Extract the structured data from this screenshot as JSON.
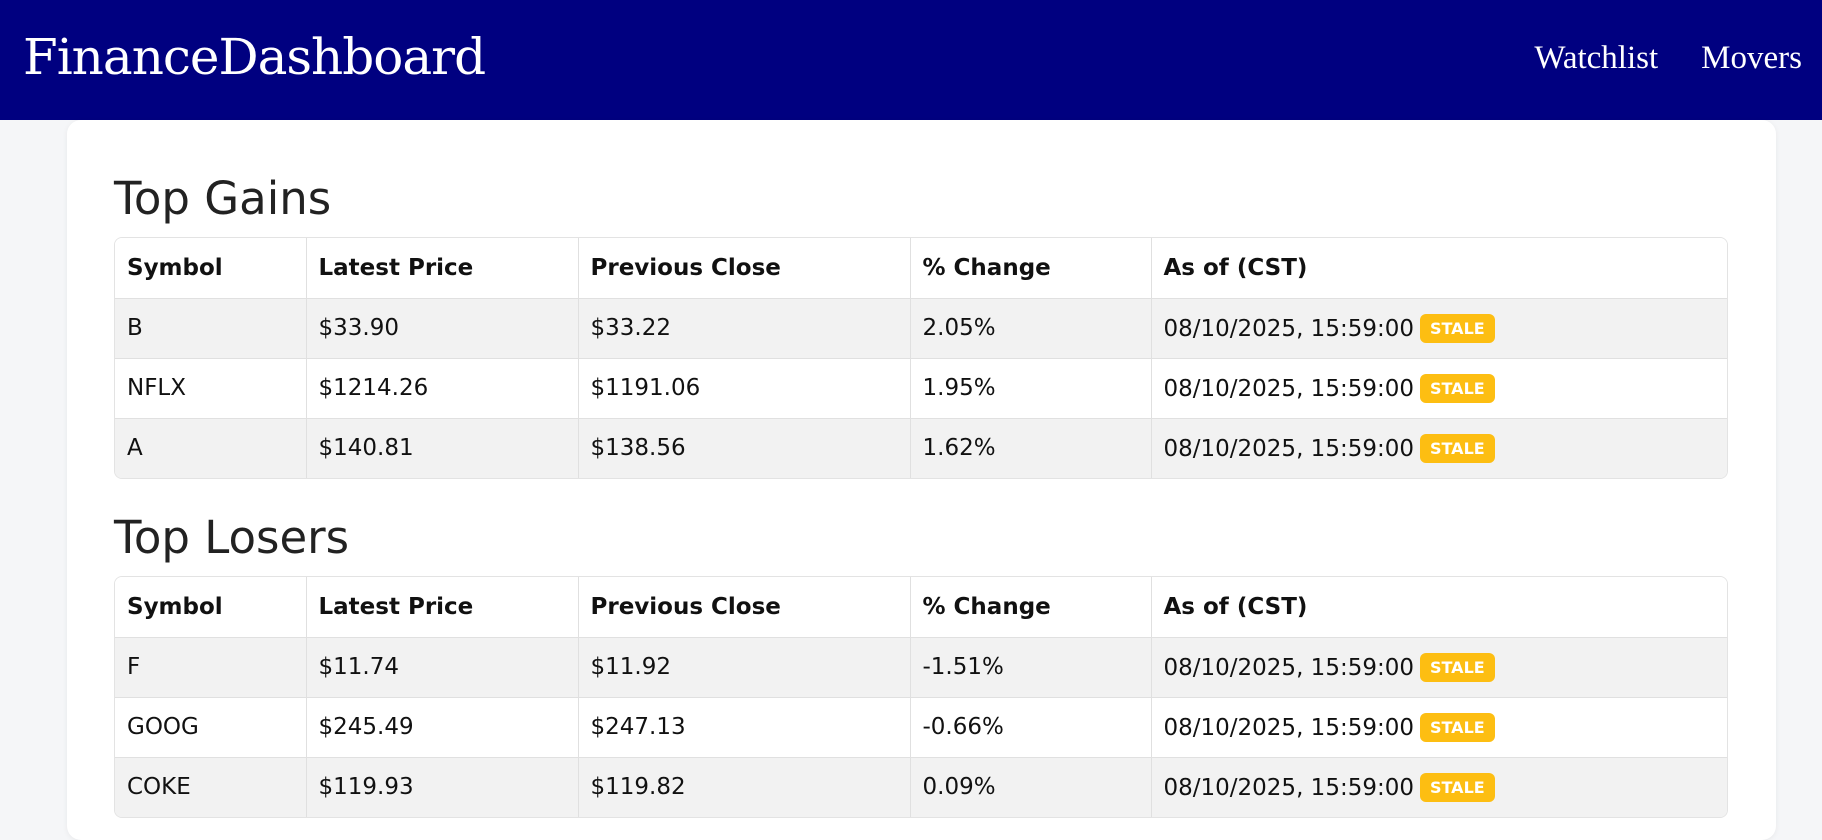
{
  "app": {
    "brand": "FinanceDashboard",
    "nav": [
      "Watchlist",
      "Movers"
    ]
  },
  "columns": [
    "Symbol",
    "Latest Price",
    "Previous Close",
    "% Change",
    "As of (CST)"
  ],
  "badge_color": "#fdbe12",
  "navbar_color": "#000080",
  "gains": {
    "title": "Top Gains",
    "rows": [
      {
        "symbol": "B",
        "latest": "$33.90",
        "previous": "$33.22",
        "change": "2.05%",
        "asof": "08/10/2025, 15:59:00",
        "badge": "STALE"
      },
      {
        "symbol": "NFLX",
        "latest": "$1214.26",
        "previous": "$1191.06",
        "change": "1.95%",
        "asof": "08/10/2025, 15:59:00",
        "badge": "STALE"
      },
      {
        "symbol": "A",
        "latest": "$140.81",
        "previous": "$138.56",
        "change": "1.62%",
        "asof": "08/10/2025, 15:59:00",
        "badge": "STALE"
      }
    ]
  },
  "losers": {
    "title": "Top Losers",
    "rows": [
      {
        "symbol": "F",
        "latest": "$11.74",
        "previous": "$11.92",
        "change": "-1.51%",
        "asof": "08/10/2025, 15:59:00",
        "badge": "STALE"
      },
      {
        "symbol": "GOOG",
        "latest": "$245.49",
        "previous": "$247.13",
        "change": "-0.66%",
        "asof": "08/10/2025, 15:59:00",
        "badge": "STALE"
      },
      {
        "symbol": "COKE",
        "latest": "$119.93",
        "previous": "$119.82",
        "change": "0.09%",
        "asof": "08/10/2025, 15:59:00",
        "badge": "STALE"
      }
    ]
  }
}
